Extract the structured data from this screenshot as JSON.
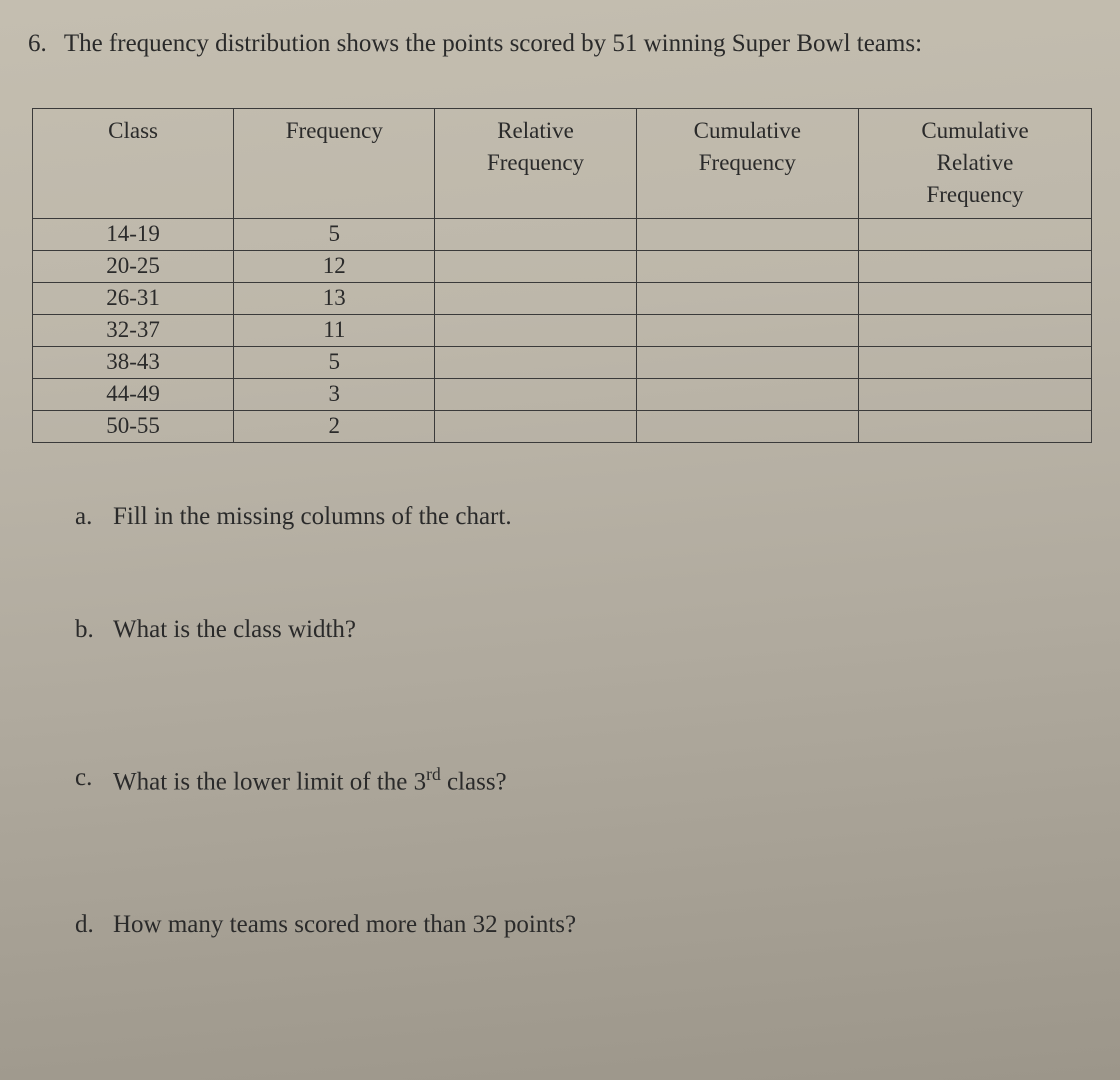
{
  "question": {
    "number": "6.",
    "text": "The frequency distribution shows the points scored by 51 winning Super Bowl teams:"
  },
  "table": {
    "type": "table",
    "background_color": "#bdb7aa",
    "border_color": "#3a3a3a",
    "text_color": "#2a2a2a",
    "font_size": 23,
    "columns": [
      {
        "label": "Class",
        "width": "19%"
      },
      {
        "label": "Frequency",
        "width": "19%"
      },
      {
        "label": "Relative\nFrequency",
        "width": "19%"
      },
      {
        "label": "Cumulative\nFrequency",
        "width": "21%"
      },
      {
        "label": "Cumulative\nRelative\nFrequency",
        "width": "22%"
      }
    ],
    "rows": [
      {
        "class": "14-19",
        "frequency": "5",
        "rel_freq": "",
        "cum_freq": "",
        "cum_rel_freq": ""
      },
      {
        "class": "20-25",
        "frequency": "12",
        "rel_freq": "",
        "cum_freq": "",
        "cum_rel_freq": ""
      },
      {
        "class": "26-31",
        "frequency": "13",
        "rel_freq": "",
        "cum_freq": "",
        "cum_rel_freq": ""
      },
      {
        "class": "32-37",
        "frequency": "11",
        "rel_freq": "",
        "cum_freq": "",
        "cum_rel_freq": ""
      },
      {
        "class": "38-43",
        "frequency": "5",
        "rel_freq": "",
        "cum_freq": "",
        "cum_rel_freq": ""
      },
      {
        "class": "44-49",
        "frequency": "3",
        "rel_freq": "",
        "cum_freq": "",
        "cum_rel_freq": ""
      },
      {
        "class": "50-55",
        "frequency": "2",
        "rel_freq": "",
        "cum_freq": "",
        "cum_rel_freq": ""
      }
    ]
  },
  "sub_questions": {
    "a": {
      "letter": "a.",
      "text": "Fill in the missing columns of the chart."
    },
    "b": {
      "letter": "b.",
      "text": "What is the class width?"
    },
    "c": {
      "letter": "c.",
      "text_before": "What is the lower limit of the 3",
      "sup": "rd",
      "text_after": " class?"
    },
    "d": {
      "letter": "d.",
      "text": "How many teams scored more than 32 points?"
    }
  }
}
